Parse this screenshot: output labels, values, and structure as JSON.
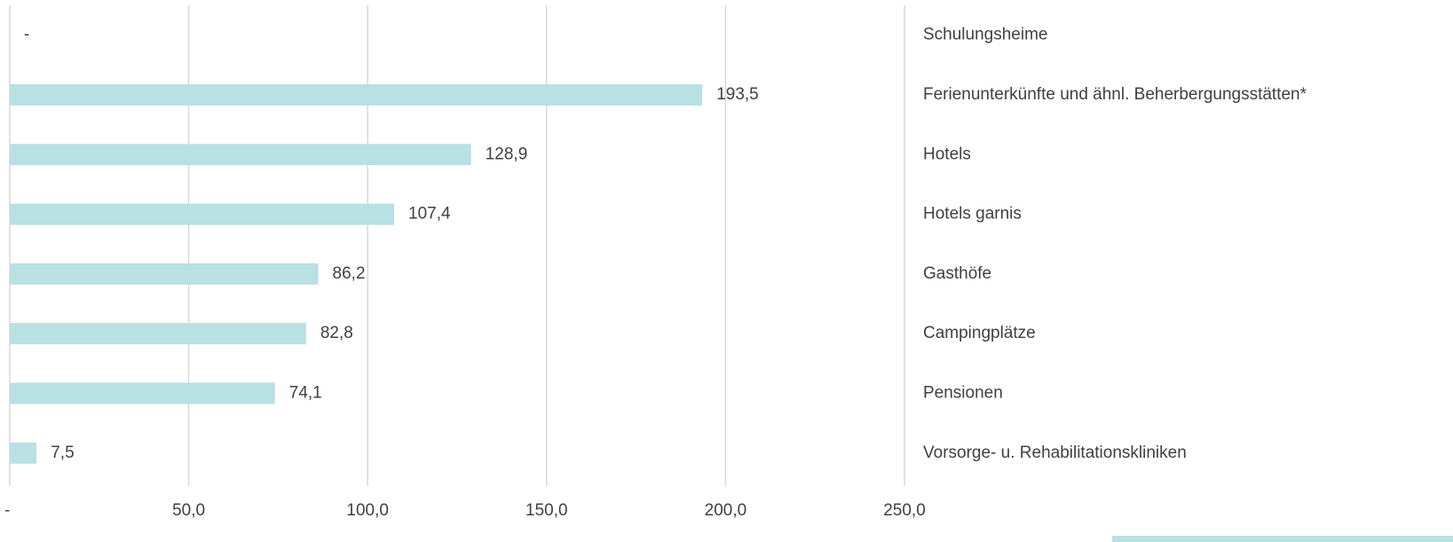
{
  "chart_data": {
    "type": "barh",
    "categories": [
      "Schulungsheime",
      "Ferienunterkünfte und ähnl. Beherbergungsstätten*",
      "Hotels",
      "Hotels garnis",
      "Gasthöfe",
      "Campingplätze",
      "Pensionen",
      "Vorsorge- u. Rehabilitationskliniken"
    ],
    "values": [
      0,
      193.5,
      128.9,
      107.4,
      86.2,
      82.8,
      74.1,
      7.5
    ],
    "value_labels": [
      "-",
      "193,5",
      "128,9",
      "107,4",
      "86,2",
      "82,8",
      "74,1",
      "7,5"
    ],
    "color": "#b9e0e3",
    "xlim": [
      0,
      250
    ],
    "xticks": [
      {
        "value": 0,
        "label": "-"
      },
      {
        "value": 50,
        "label": "50,0"
      },
      {
        "value": 100,
        "label": "100,0"
      },
      {
        "value": 150,
        "label": "150,0"
      },
      {
        "value": 200,
        "label": "200,0"
      },
      {
        "value": 250,
        "label": "250,0"
      }
    ],
    "grid": true
  }
}
